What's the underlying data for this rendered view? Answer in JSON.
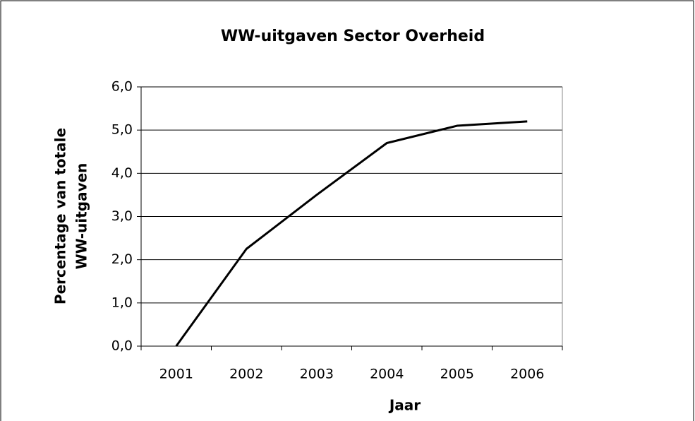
{
  "chart_data": {
    "type": "line",
    "title": "WW-uitgaven Sector Overheid",
    "xlabel": "Jaar",
    "ylabel": [
      "Percentage van totale",
      "WW-uitgaven"
    ],
    "categories": [
      "2001",
      "2002",
      "2003",
      "2004",
      "2005",
      "2006"
    ],
    "series": [
      {
        "name": "WW-uitgaven Sector Overheid",
        "color": "#000000",
        "values": [
          0.0,
          2.25,
          3.5,
          4.7,
          5.1,
          5.2
        ]
      }
    ],
    "ylim": [
      0,
      6
    ],
    "yticks": [
      {
        "value": 0,
        "label": "0,0"
      },
      {
        "value": 1,
        "label": "1,0"
      },
      {
        "value": 2,
        "label": "2,0"
      },
      {
        "value": 3,
        "label": "3,0"
      },
      {
        "value": 4,
        "label": "4,0"
      },
      {
        "value": 5,
        "label": "5,0"
      },
      {
        "value": 6,
        "label": "6,0"
      }
    ],
    "grid": true,
    "legend": false
  }
}
